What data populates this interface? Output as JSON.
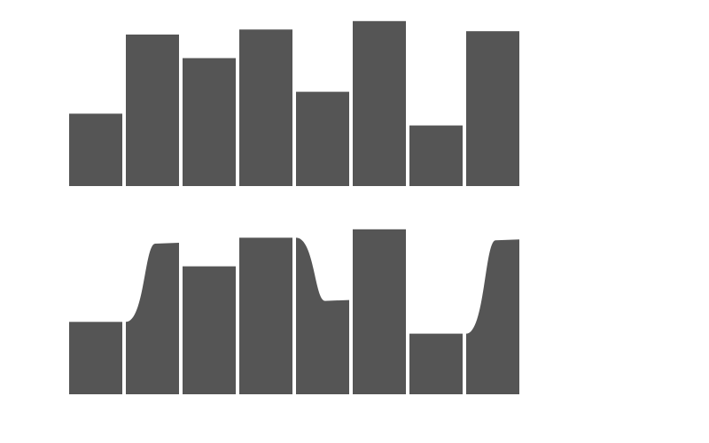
{
  "chart_data": [
    {
      "type": "bar",
      "title": "",
      "xlabel": "",
      "ylabel": "",
      "categories": [
        "",
        "",
        "",
        "",
        "",
        "",
        "",
        ""
      ],
      "values": [
        43,
        90,
        76,
        93,
        56,
        98,
        36,
        92
      ],
      "ylim": [
        0,
        100
      ],
      "grid": false,
      "color": "#555555"
    },
    {
      "type": "bar",
      "title": "",
      "xlabel": "",
      "ylabel": "",
      "categories": [
        "",
        "",
        "",
        "",
        "",
        "",
        "",
        ""
      ],
      "values": [
        43,
        90,
        76,
        93,
        56,
        98,
        36,
        92
      ],
      "ylim": [
        0,
        100
      ],
      "grid": false,
      "color": "#555555",
      "transitions": [
        {
          "from": 0,
          "to": 1
        },
        {
          "from": 3,
          "to": 4
        },
        {
          "from": 6,
          "to": 7
        }
      ]
    }
  ]
}
